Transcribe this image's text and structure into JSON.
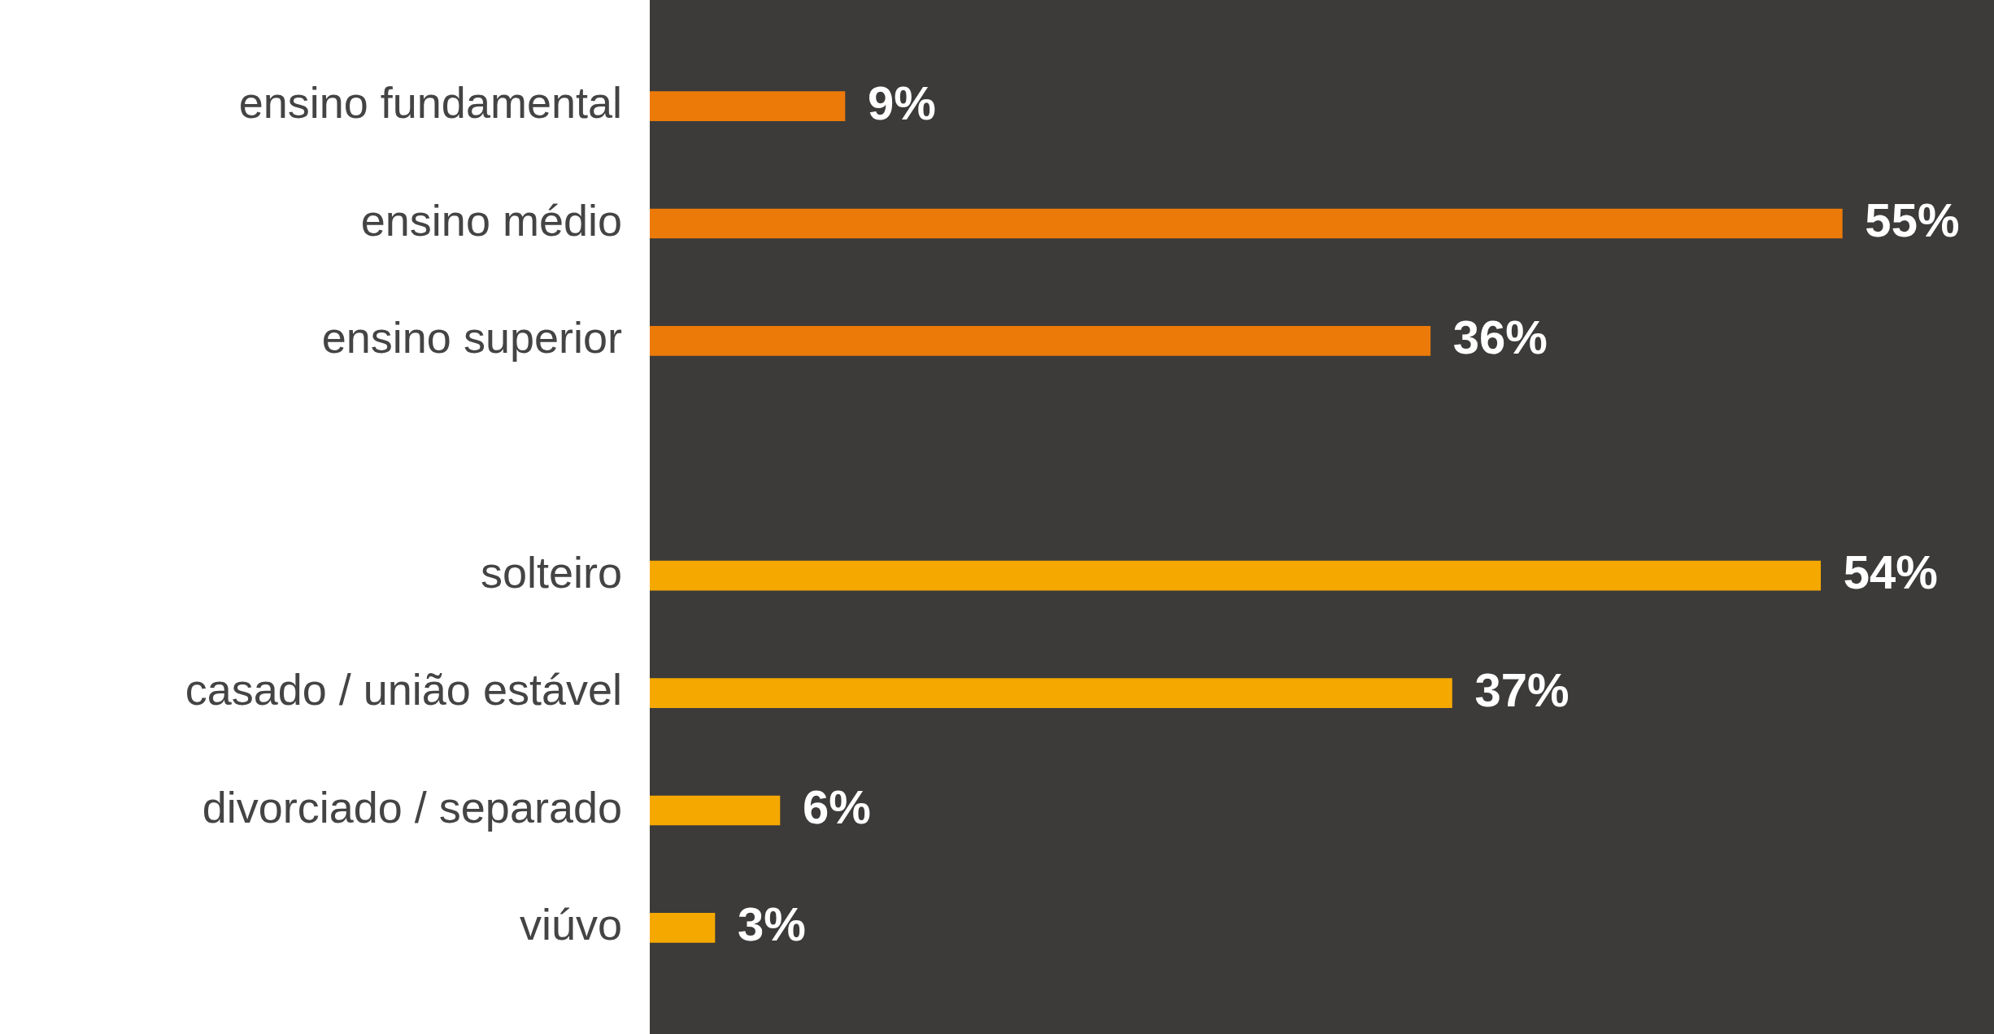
{
  "chart_data": {
    "type": "bar",
    "orientation": "horizontal",
    "categories": [
      "ensino fundamental",
      "ensino médio",
      "ensino superior",
      null,
      "solteiro",
      "casado / união estável",
      "divorciado / separado",
      "viúvo"
    ],
    "values": [
      9,
      55,
      36,
      null,
      54,
      37,
      6,
      3
    ],
    "colors": [
      "#ec7a08",
      "#ec7a08",
      "#ec7a08",
      "#f5a800",
      "#f5a800",
      "#f5a800",
      "#f5a800",
      "#f5a800"
    ],
    "value_labels": [
      "9%",
      "55%",
      "36%",
      null,
      "54%",
      "37%",
      "6%",
      "3%"
    ],
    "xlim": [
      0,
      62
    ],
    "tick_labels": "y",
    "legend": false
  }
}
